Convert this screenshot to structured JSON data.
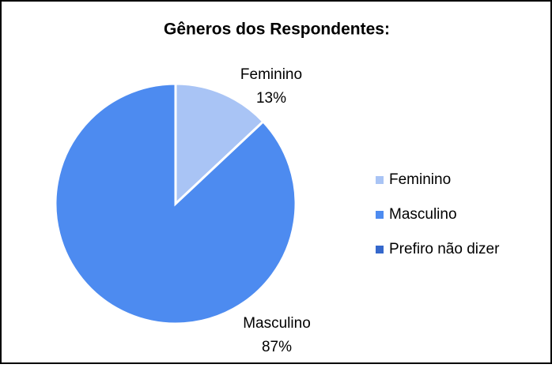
{
  "chart_data": {
    "type": "pie",
    "title": "Gêneros dos Respondentes:",
    "categories": [
      "Feminino",
      "Masculino",
      "Prefiro não dizer"
    ],
    "values": [
      13,
      87,
      0
    ],
    "value_labels": [
      "13%",
      "87%",
      null
    ],
    "colors": [
      "#a9c4f5",
      "#4d8bf0",
      "#3568cc"
    ],
    "legend": "right"
  }
}
